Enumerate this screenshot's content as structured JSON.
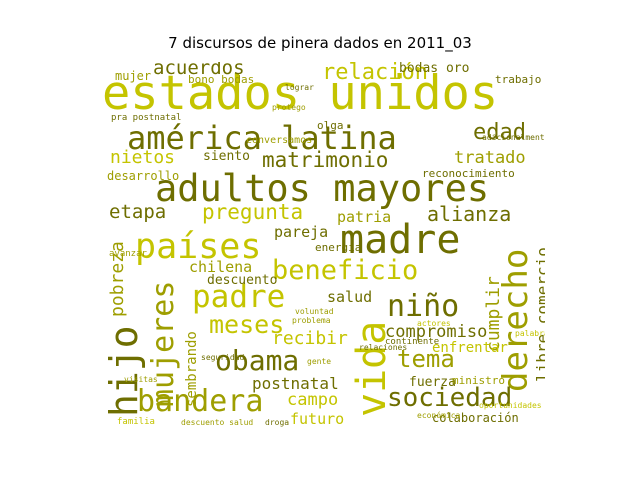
{
  "title": "7 discursos de pinera dados en 2011_03",
  "colors": {
    "light": "#c4c400",
    "mid": "#9e9e00",
    "dark": "#6e6e00",
    "faint": "#d9d97a"
  },
  "words": [
    {
      "t": "estados unidos",
      "c": "light",
      "v": false
    },
    {
      "t": "américa latina",
      "c": "dark",
      "v": false
    },
    {
      "t": "adultos mayores",
      "c": "dark",
      "v": false
    },
    {
      "t": "madre",
      "c": "dark",
      "v": false
    },
    {
      "t": "países",
      "c": "light",
      "v": false
    },
    {
      "t": "vida",
      "c": "light",
      "v": true
    },
    {
      "t": "derecho",
      "c": "mid",
      "v": true
    },
    {
      "t": "mujeres",
      "c": "mid",
      "v": true
    },
    {
      "t": "hijo",
      "c": "dark",
      "v": true
    },
    {
      "t": "padre",
      "c": "light",
      "v": false
    },
    {
      "t": "beneficio",
      "c": "light",
      "v": false
    },
    {
      "t": "niño",
      "c": "dark",
      "v": false
    },
    {
      "t": "bandera",
      "c": "mid",
      "v": false
    },
    {
      "t": "sociedad",
      "c": "dark",
      "v": false
    },
    {
      "t": "obama",
      "c": "dark",
      "v": false
    },
    {
      "t": "relación",
      "c": "light",
      "v": false
    },
    {
      "t": "matrimonio",
      "c": "dark",
      "v": false
    },
    {
      "t": "edad",
      "c": "dark",
      "v": false
    },
    {
      "t": "pregunta",
      "c": "light",
      "v": false
    },
    {
      "t": "alianza",
      "c": "dark",
      "v": false
    },
    {
      "t": "tema",
      "c": "mid",
      "v": false
    },
    {
      "t": "meses",
      "c": "light",
      "v": false
    },
    {
      "t": "etapa",
      "c": "dark",
      "v": false
    },
    {
      "t": "tratado",
      "c": "mid",
      "v": false
    },
    {
      "t": "nietos",
      "c": "light",
      "v": false
    },
    {
      "t": "acuerdos",
      "c": "dark",
      "v": false
    },
    {
      "t": "chilena",
      "c": "mid",
      "v": false
    },
    {
      "t": "compromiso",
      "c": "dark",
      "v": false
    },
    {
      "t": "postnatal",
      "c": "dark",
      "v": false
    },
    {
      "t": "recibir",
      "c": "light",
      "v": false
    },
    {
      "t": "pobreza",
      "c": "mid",
      "v": true
    },
    {
      "t": "sembrando",
      "c": "mid",
      "v": true
    },
    {
      "t": "cumplir",
      "c": "mid",
      "v": true
    },
    {
      "t": "libre comercio",
      "c": "dark",
      "v": true
    },
    {
      "t": "salud",
      "c": "dark",
      "v": false
    },
    {
      "t": "patria",
      "c": "mid",
      "v": false
    },
    {
      "t": "pareja",
      "c": "dark",
      "v": false
    },
    {
      "t": "campo",
      "c": "light",
      "v": false
    },
    {
      "t": "fuerza",
      "c": "dark",
      "v": false
    },
    {
      "t": "futuro",
      "c": "light",
      "v": false
    },
    {
      "t": "enfrentar",
      "c": "light",
      "v": false
    },
    {
      "t": "colaboración",
      "c": "dark",
      "v": false
    },
    {
      "t": "descuento",
      "c": "dark",
      "v": false
    },
    {
      "t": "bodas oro",
      "c": "dark",
      "v": false
    },
    {
      "t": "mujer",
      "c": "mid",
      "v": false
    },
    {
      "t": "bono bodas",
      "c": "mid",
      "v": false
    },
    {
      "t": "energía",
      "c": "dark",
      "v": false
    },
    {
      "t": "desarrollo",
      "c": "mid",
      "v": false
    },
    {
      "t": "siento",
      "c": "dark",
      "v": false
    },
    {
      "t": "reconocimiento",
      "c": "dark",
      "v": false
    },
    {
      "t": "trabajo",
      "c": "dark",
      "v": false
    },
    {
      "t": "olga",
      "c": "dark",
      "v": false
    },
    {
      "t": "ministro",
      "c": "mid",
      "v": false
    },
    {
      "t": "continente",
      "c": "dark",
      "v": false
    },
    {
      "t": "conversamos",
      "c": "mid",
      "v": false
    },
    {
      "t": "adicionalmente",
      "c": "dark",
      "v": false
    },
    {
      "t": "avanzar",
      "c": "mid",
      "v": false
    },
    {
      "t": "lograr",
      "c": "dark",
      "v": false
    },
    {
      "t": "protego",
      "c": "mid",
      "v": false
    },
    {
      "t": "pra postnatal",
      "c": "dark",
      "v": false
    },
    {
      "t": "familia",
      "c": "light",
      "v": false
    },
    {
      "t": "visitas",
      "c": "mid",
      "v": false
    },
    {
      "t": "descuento salud",
      "c": "mid",
      "v": false
    },
    {
      "t": "droga",
      "c": "dark",
      "v": false
    },
    {
      "t": "voluntad",
      "c": "mid",
      "v": false
    },
    {
      "t": "problema",
      "c": "mid",
      "v": false
    },
    {
      "t": "relaciones",
      "c": "dark",
      "v": false
    },
    {
      "t": "seguridad",
      "c": "dark",
      "v": false
    },
    {
      "t": "gente",
      "c": "mid",
      "v": false
    },
    {
      "t": "oportunidades",
      "c": "light",
      "v": false
    },
    {
      "t": "económica",
      "c": "mid",
      "v": false
    },
    {
      "t": "palabras",
      "c": "light",
      "v": false
    },
    {
      "t": "actores",
      "c": "light",
      "v": false
    }
  ]
}
